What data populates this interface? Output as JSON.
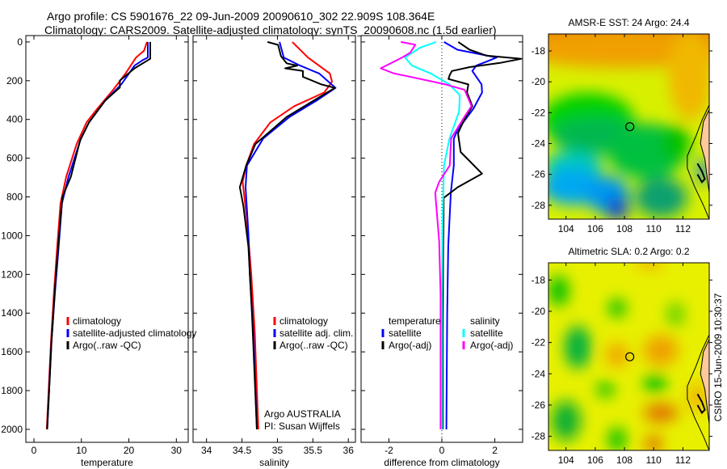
{
  "header": {
    "line1": "Argo profile: CS 5901676_22 09-Jun-2009 20090610_302 22.909S 108.364E",
    "line2": "Climatology: CARS2009. Satellite-adjusted climatology: synTS_20090608.nc (1.5d earlier)"
  },
  "colors": {
    "red": "#ff0000",
    "blue": "#0000ff",
    "black": "#000000",
    "cyan": "#00ffff",
    "magenta": "#ff00ff"
  },
  "chart_data": [
    {
      "type": "line",
      "xlabel": "temperature",
      "ylabel": "",
      "xlim": [
        -1.7,
        32.5
      ],
      "ylim": [
        2067,
        -33
      ],
      "xticks": [
        "0",
        "10",
        "20",
        "30"
      ],
      "xtick_values": [
        0,
        10,
        20,
        30
      ],
      "yticks": [
        "0",
        "200",
        "400",
        "600",
        "800",
        "1000",
        "1200",
        "1400",
        "1600",
        "1800",
        "2000"
      ],
      "ytick_values": [
        0,
        200,
        400,
        600,
        800,
        1000,
        1200,
        1400,
        1600,
        1800,
        2000
      ],
      "legend": {
        "entries": [
          "climatology",
          "satellite-adjusted climatology",
          "Argo(..raw -QC)"
        ],
        "colors": [
          "red",
          "blue",
          "black"
        ],
        "placement": "lower-center"
      },
      "series": [
        {
          "name": "climatology",
          "color": "red",
          "points": [
            [
              23.8,
              0
            ],
            [
              23.2,
              45
            ],
            [
              21.5,
              80
            ],
            [
              19.3,
              163
            ],
            [
              16.7,
              247
            ],
            [
              13.3,
              346
            ],
            [
              11.1,
              415
            ],
            [
              9.0,
              527
            ],
            [
              6.8,
              695
            ],
            [
              5.6,
              833
            ],
            [
              4.9,
              1058
            ],
            [
              4.2,
              1300
            ],
            [
              3.6,
              1550
            ],
            [
              3.1,
              1800
            ],
            [
              2.7,
              2000
            ]
          ]
        },
        {
          "name": "satellite-adjusted climatology",
          "color": "blue",
          "points": [
            [
              24.0,
              0
            ],
            [
              24.0,
              80
            ],
            [
              22.9,
              94
            ],
            [
              21.2,
              122
            ],
            [
              18.4,
              219
            ],
            [
              15.0,
              303
            ],
            [
              11.6,
              415
            ],
            [
              9.9,
              498
            ],
            [
              7.3,
              695
            ],
            [
              5.9,
              833
            ],
            [
              5.2,
              1058
            ],
            [
              4.4,
              1300
            ],
            [
              3.7,
              1550
            ],
            [
              3.2,
              1800
            ],
            [
              2.8,
              2000
            ]
          ]
        },
        {
          "name": "Argo(..raw -QC)",
          "color": "black",
          "points": [
            [
              24.5,
              0
            ],
            [
              24.5,
              87
            ],
            [
              21.2,
              136
            ],
            [
              18.1,
              199
            ],
            [
              18.1,
              235
            ],
            [
              17.4,
              250
            ],
            [
              15.0,
              303
            ],
            [
              11.6,
              415
            ],
            [
              9.7,
              510
            ],
            [
              7.8,
              695
            ],
            [
              6.0,
              800
            ],
            [
              5.3,
              1000
            ],
            [
              4.5,
              1250
            ],
            [
              3.7,
              1550
            ],
            [
              3.2,
              1800
            ],
            [
              2.8,
              2000
            ]
          ]
        }
      ]
    },
    {
      "type": "line",
      "xlabel": "salinity",
      "ylabel": "",
      "xlim": [
        33.81,
        36.1
      ],
      "ylim": [
        2067,
        -33
      ],
      "xticks": [
        "34",
        "34.5",
        "35",
        "35.5",
        "36"
      ],
      "xtick_values": [
        34,
        34.5,
        35,
        35.5,
        36
      ],
      "legend": {
        "entries": [
          "climatology",
          "satellite adj. clim.",
          "Argo(..raw -QC)"
        ],
        "colors": [
          "red",
          "blue",
          "black"
        ],
        "placement": "lower-center"
      },
      "annotation": [
        "Argo AUSTRALIA",
        "PI: Susan Wijffels"
      ],
      "series": [
        {
          "name": "climatology",
          "color": "red",
          "points": [
            [
              35.21,
              0
            ],
            [
              35.43,
              80
            ],
            [
              35.74,
              163
            ],
            [
              35.77,
              205
            ],
            [
              35.66,
              261
            ],
            [
              35.24,
              331
            ],
            [
              34.9,
              415
            ],
            [
              34.67,
              527
            ],
            [
              34.56,
              638
            ],
            [
              34.51,
              722
            ],
            [
              34.57,
              917
            ],
            [
              34.63,
              1196
            ],
            [
              34.68,
              1500
            ],
            [
              34.73,
              2000
            ]
          ]
        },
        {
          "name": "satellite adj. clim.",
          "color": "blue",
          "points": [
            [
              35.03,
              0
            ],
            [
              35.09,
              80
            ],
            [
              35.32,
              122
            ],
            [
              35.59,
              163
            ],
            [
              35.82,
              237
            ],
            [
              35.55,
              303
            ],
            [
              35.17,
              387
            ],
            [
              34.8,
              498
            ],
            [
              34.57,
              638
            ],
            [
              34.55,
              750
            ],
            [
              34.59,
              987
            ],
            [
              34.61,
              1196
            ],
            [
              34.66,
              1500
            ],
            [
              34.71,
              2000
            ]
          ]
        },
        {
          "name": "Argo(..raw -QC)",
          "color": "black",
          "points": [
            [
              34.86,
              0
            ],
            [
              35.01,
              15
            ],
            [
              35.05,
              73
            ],
            [
              35.13,
              110
            ],
            [
              35.28,
              122
            ],
            [
              35.11,
              136
            ],
            [
              35.36,
              150
            ],
            [
              35.36,
              180
            ],
            [
              35.62,
              219
            ],
            [
              35.81,
              237
            ],
            [
              35.51,
              303
            ],
            [
              35.13,
              387
            ],
            [
              34.69,
              527
            ],
            [
              34.56,
              638
            ],
            [
              34.47,
              750
            ],
            [
              34.52,
              847
            ],
            [
              34.59,
              1056
            ],
            [
              34.64,
              1400
            ],
            [
              34.71,
              2000
            ]
          ]
        }
      ]
    },
    {
      "type": "line",
      "xlabel": "difference from climatology",
      "ylabel": "",
      "xlim": [
        -3.05,
        3.05
      ],
      "ylim": [
        2067,
        -33
      ],
      "xticks": [
        "-2",
        "0",
        "2"
      ],
      "xtick_values": [
        -2,
        0,
        2
      ],
      "zero_line": true,
      "legend": {
        "temperature": {
          "heading": "temperature",
          "entries": [
            "satellite",
            "Argo(-adj)"
          ],
          "colors": [
            "blue",
            "black"
          ]
        },
        "salinity": {
          "heading": "salinity",
          "entries": [
            "satellite",
            "Argo(-adj)"
          ],
          "colors": [
            "cyan",
            "magenta"
          ]
        },
        "placement": "lower-center"
      },
      "series": [
        {
          "name": "temperature satellite",
          "color": "blue",
          "points": [
            [
              0.08,
              0
            ],
            [
              0.59,
              40
            ],
            [
              2.07,
              80
            ],
            [
              1.7,
              101
            ],
            [
              1.3,
              122
            ],
            [
              1.15,
              150
            ],
            [
              1.5,
              219
            ],
            [
              1.52,
              261
            ],
            [
              1.19,
              345
            ],
            [
              0.58,
              457
            ],
            [
              0.45,
              500
            ],
            [
              0.45,
              638
            ],
            [
              0.34,
              778
            ],
            [
              0.24,
              1056
            ],
            [
              0.2,
              1400
            ],
            [
              0.17,
              2000
            ]
          ]
        },
        {
          "name": "temperature Argo(-adj)",
          "color": "black",
          "points": [
            [
              0.62,
              0
            ],
            [
              1.05,
              40
            ],
            [
              1.67,
              70
            ],
            [
              3.0,
              87
            ],
            [
              2.2,
              108
            ],
            [
              1.05,
              130
            ],
            [
              0.38,
              150
            ],
            [
              0.3,
              170
            ],
            [
              0.25,
              191
            ],
            [
              1.0,
              219
            ],
            [
              0.95,
              260
            ],
            [
              1.15,
              331
            ],
            [
              0.8,
              415
            ],
            [
              0.61,
              471
            ],
            [
              0.71,
              568
            ],
            [
              1.52,
              680
            ],
            [
              0.6,
              750
            ],
            [
              0.07,
              805
            ],
            [
              0.05,
              1100
            ],
            [
              0.03,
              1500
            ],
            [
              0.03,
              2000
            ]
          ]
        },
        {
          "name": "salinity satellite",
          "color": "cyan",
          "points": [
            [
              -0.22,
              0
            ],
            [
              -0.83,
              30
            ],
            [
              -1.39,
              80
            ],
            [
              -1.13,
              122
            ],
            [
              -0.42,
              163
            ],
            [
              0.29,
              219
            ],
            [
              0.68,
              275
            ],
            [
              0.65,
              359
            ],
            [
              0.29,
              498
            ],
            [
              0.08,
              638
            ],
            [
              0.03,
              917
            ],
            [
              0.0,
              1300
            ],
            [
              0.0,
              2000
            ]
          ]
        },
        {
          "name": "salinity Argo(-adj)",
          "color": "magenta",
          "points": [
            [
              -1.55,
              0
            ],
            [
              -1.0,
              14
            ],
            [
              -1.2,
              56
            ],
            [
              -1.5,
              80
            ],
            [
              -2.31,
              136
            ],
            [
              -1.8,
              163
            ],
            [
              -1.29,
              177
            ],
            [
              0.14,
              219
            ],
            [
              0.86,
              247
            ],
            [
              1.12,
              331
            ],
            [
              0.85,
              387
            ],
            [
              0.35,
              498
            ],
            [
              0.3,
              638
            ],
            [
              -0.1,
              722
            ],
            [
              -0.25,
              778
            ],
            [
              -0.1,
              1030
            ],
            [
              -0.05,
              1300
            ],
            [
              -0.05,
              2000
            ]
          ]
        }
      ]
    },
    {
      "type": "heatmap",
      "title": "AMSR-E SST: 24 Argo: 24.4",
      "xlim": [
        102.8,
        113.8
      ],
      "ylim": [
        -16.9,
        -28.9
      ],
      "xticks": [
        "104",
        "106",
        "108",
        "110",
        "112"
      ],
      "xtick_values": [
        104,
        106,
        108,
        110,
        112
      ],
      "yticks": [
        "-18",
        "-20",
        "-22",
        "-24",
        "-26",
        "-28"
      ],
      "ytick_values": [
        -18,
        -20,
        -22,
        -24,
        -26,
        -28
      ],
      "argo_position": [
        108.364,
        -22.909
      ]
    },
    {
      "type": "heatmap",
      "title": "Altimetric SLA: 0.2 Argo: 0.2",
      "xlim": [
        102.8,
        113.8
      ],
      "ylim": [
        -16.9,
        -28.9
      ],
      "xticks": [
        "104",
        "106",
        "108",
        "110",
        "112"
      ],
      "xtick_values": [
        104,
        106,
        108,
        110,
        112
      ],
      "yticks": [
        "-18",
        "-20",
        "-22",
        "-24",
        "-26",
        "-28"
      ],
      "ytick_values": [
        -18,
        -20,
        -22,
        -24,
        -26,
        -28
      ],
      "argo_position": [
        108.364,
        -22.909
      ]
    }
  ],
  "footer": {
    "stamp": "CSIRO 15-Jun-2009 10:30:37"
  }
}
